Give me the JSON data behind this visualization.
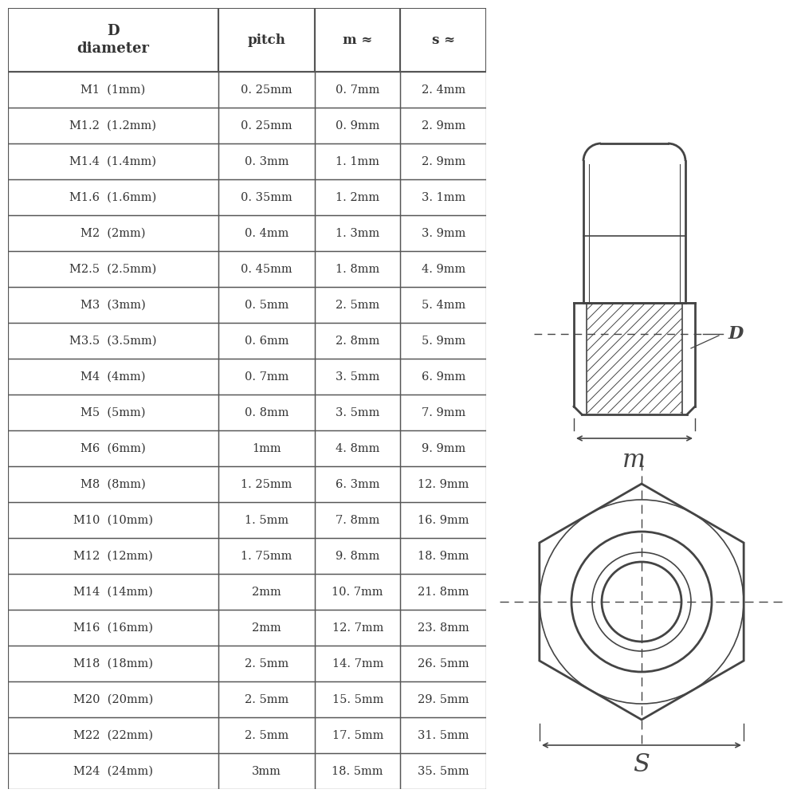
{
  "headers": [
    "D\ndiameter",
    "pitch",
    "m ≈",
    "s ≈"
  ],
  "rows": [
    [
      "M1  (1mm)",
      "0. 25mm",
      "0. 7mm",
      "2. 4mm"
    ],
    [
      "M1.2  (1.2mm)",
      "0. 25mm",
      "0. 9mm",
      "2. 9mm"
    ],
    [
      "M1.4  (1.4mm)",
      "0. 3mm",
      "1. 1mm",
      "2. 9mm"
    ],
    [
      "M1.6  (1.6mm)",
      "0. 35mm",
      "1. 2mm",
      "3. 1mm"
    ],
    [
      "M2  (2mm)",
      "0. 4mm",
      "1. 3mm",
      "3. 9mm"
    ],
    [
      "M2.5  (2.5mm)",
      "0. 45mm",
      "1. 8mm",
      "4. 9mm"
    ],
    [
      "M3  (3mm)",
      "0. 5mm",
      "2. 5mm",
      "5. 4mm"
    ],
    [
      "M3.5  (3.5mm)",
      "0. 6mm",
      "2. 8mm",
      "5. 9mm"
    ],
    [
      "M4  (4mm)",
      "0. 7mm",
      "3. 5mm",
      "6. 9mm"
    ],
    [
      "M5  (5mm)",
      "0. 8mm",
      "3. 5mm",
      "7. 9mm"
    ],
    [
      "M6  (6mm)",
      "1mm",
      "4. 8mm",
      "9. 9mm"
    ],
    [
      "M8  (8mm)",
      "1. 25mm",
      "6. 3mm",
      "12. 9mm"
    ],
    [
      "M10  (10mm)",
      "1. 5mm",
      "7. 8mm",
      "16. 9mm"
    ],
    [
      "M12  (12mm)",
      "1. 75mm",
      "9. 8mm",
      "18. 9mm"
    ],
    [
      "M14  (14mm)",
      "2mm",
      "10. 7mm",
      "21. 8mm"
    ],
    [
      "M16  (16mm)",
      "2mm",
      "12. 7mm",
      "23. 8mm"
    ],
    [
      "M18  (18mm)",
      "2. 5mm",
      "14. 7mm",
      "26. 5mm"
    ],
    [
      "M20  (20mm)",
      "2. 5mm",
      "15. 5mm",
      "29. 5mm"
    ],
    [
      "M22  (22mm)",
      "2. 5mm",
      "17. 5mm",
      "31. 5mm"
    ],
    [
      "M24  (24mm)",
      "3mm",
      "18. 5mm",
      "35. 5mm"
    ]
  ],
  "line_color": "#555555",
  "text_color": "#333333",
  "draw_color": "#444444"
}
